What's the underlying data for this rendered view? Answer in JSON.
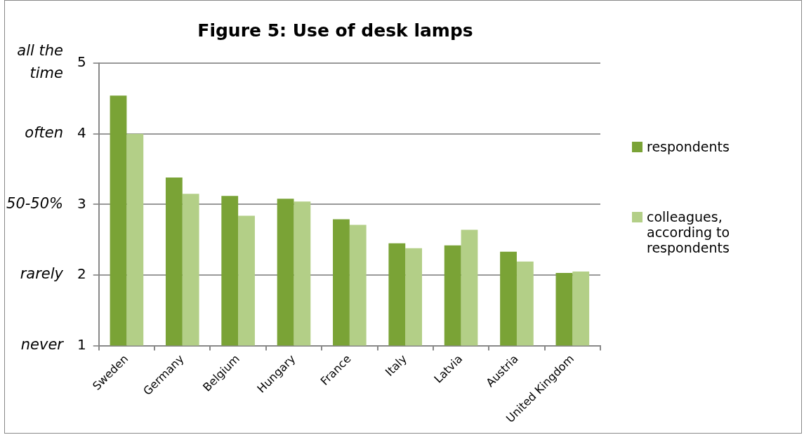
{
  "chart_data": {
    "type": "bar",
    "title": "Figure 5: Use of desk lamps",
    "categories": [
      "Sweden",
      "Germany",
      "Belgium",
      "Hungary",
      "France",
      "Italy",
      "Latvia",
      "Austria",
      "United Kingdom"
    ],
    "series": [
      {
        "name": "respondents",
        "color": "#7aa336",
        "values": [
          4.54,
          3.38,
          3.12,
          3.08,
          2.79,
          2.45,
          2.42,
          2.33,
          2.03
        ]
      },
      {
        "name": "colleagues, according to respondents",
        "color": "#b3cf87",
        "values": [
          4.0,
          3.15,
          2.84,
          3.04,
          2.71,
          2.38,
          2.64,
          2.19,
          2.05
        ]
      }
    ],
    "ylim": [
      1,
      5
    ],
    "yticks": [
      1,
      2,
      3,
      4,
      5
    ],
    "grid": "y",
    "legend": "right",
    "annotations": [
      "never",
      "rarely",
      "50-50%",
      "often",
      "all the time"
    ]
  }
}
